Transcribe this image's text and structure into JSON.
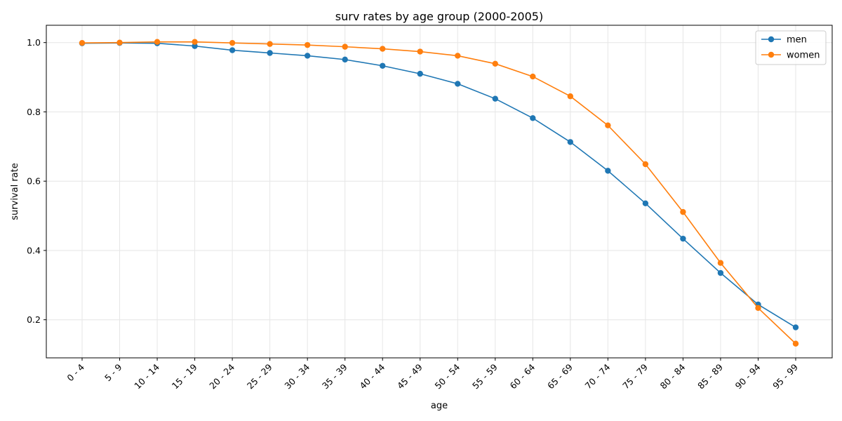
{
  "chart_data": {
    "type": "line",
    "title": "surv rates by age group (2000-2005)",
    "xlabel": "age",
    "ylabel": "survival rate",
    "categories": [
      "0 - 4",
      "5 - 9",
      "10 - 14",
      "15 - 19",
      "20 - 24",
      "25 - 29",
      "30 - 34",
      "35 - 39",
      "40 - 44",
      "45 - 49",
      "50 - 54",
      "55 - 59",
      "60 - 64",
      "65 - 69",
      "70 - 74",
      "75 - 79",
      "80 - 84",
      "85 - 89",
      "90 - 94",
      "95 - 99"
    ],
    "ylim": [
      0.09,
      1.05
    ],
    "yticks": [
      0.2,
      0.4,
      0.6,
      0.8,
      1.0
    ],
    "ytick_labels": [
      "0.2",
      "0.4",
      "0.6",
      "0.8",
      "1.0"
    ],
    "grid": true,
    "legend_position": "top-right",
    "series": [
      {
        "name": "men",
        "color": "#1f77b4",
        "marker": "circle",
        "values": [
          0.998,
          0.999,
          0.998,
          0.99,
          0.978,
          0.97,
          0.962,
          0.951,
          0.933,
          0.91,
          0.881,
          0.838,
          0.782,
          0.713,
          0.63,
          0.536,
          0.434,
          0.335,
          0.244,
          0.178
        ]
      },
      {
        "name": "women",
        "color": "#ff7f0e",
        "marker": "circle",
        "values": [
          0.999,
          1.0,
          1.002,
          1.002,
          0.999,
          0.996,
          0.993,
          0.988,
          0.982,
          0.974,
          0.962,
          0.939,
          0.902,
          0.845,
          0.761,
          0.649,
          0.511,
          0.364,
          0.234,
          0.131
        ]
      }
    ]
  }
}
